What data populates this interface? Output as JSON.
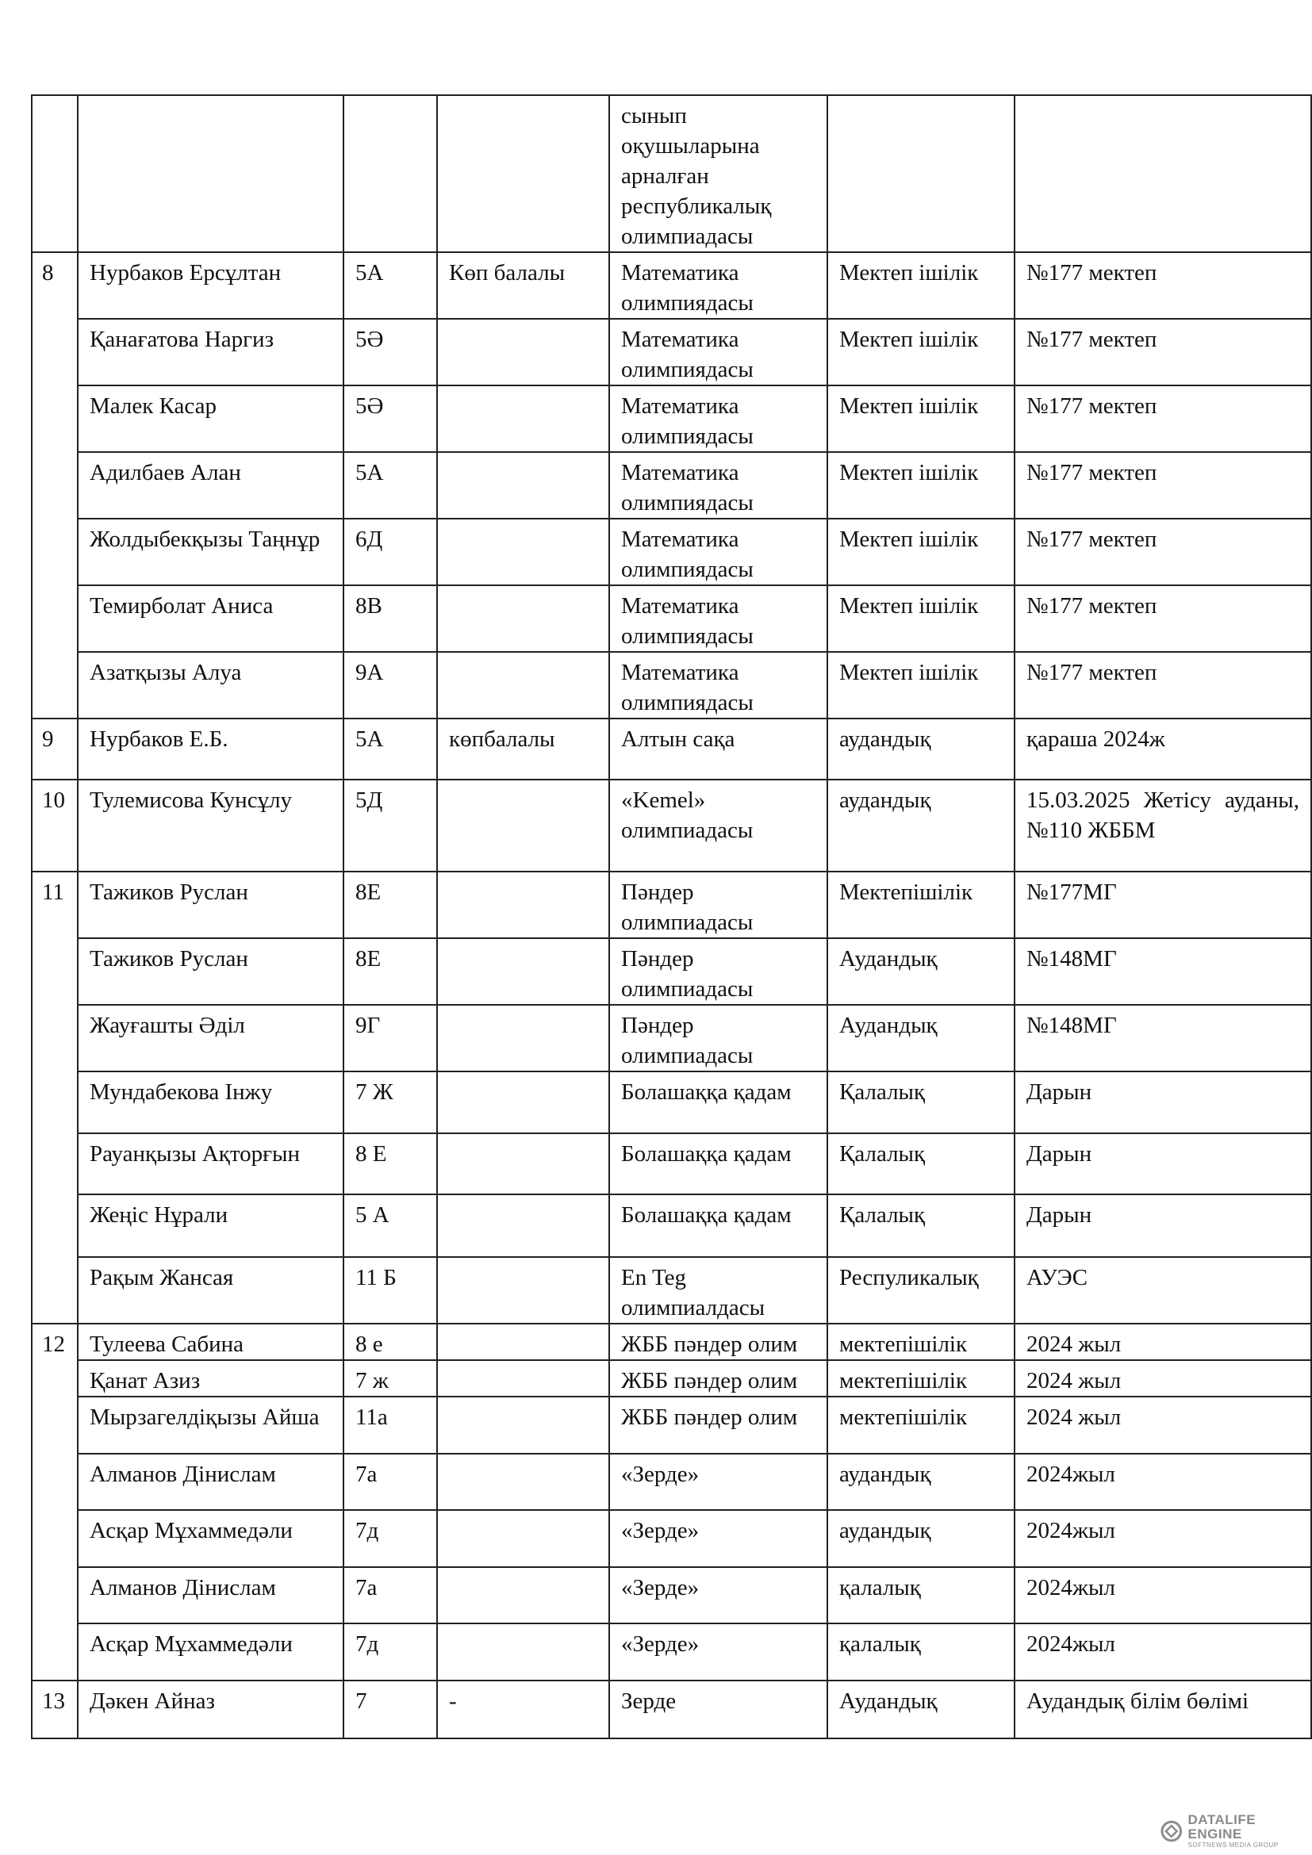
{
  "groups": [
    {
      "num": "",
      "rows": [
        {
          "name": "",
          "grade": "",
          "status": "",
          "olympiad": "сынып оқушыларына арналған республикалық олимпиадасы",
          "level": "",
          "place": ""
        }
      ]
    },
    {
      "num": "8",
      "rows": [
        {
          "name": "Нурбаков Ерсұлтан",
          "grade": "5А",
          "status": "Көп балалы",
          "olympiad": "Математика олимпиядасы",
          "level": "Мектеп ішілік",
          "place": "№177 мектеп"
        },
        {
          "name": "Қанағатова Наргиз",
          "grade": "5Ә",
          "status": "",
          "olympiad": "Математика олимпиядасы",
          "level": "Мектеп ішілік",
          "place": "№177 мектеп"
        },
        {
          "name": "Малек Касар",
          "grade": "5Ә",
          "status": "",
          "olympiad": "Математика олимпиядасы",
          "level": "Мектеп ішілік",
          "place": "№177 мектеп"
        },
        {
          "name": "Адилбаев Алан",
          "grade": "5А",
          "status": "",
          "olympiad": "Математика олимпиядасы",
          "level": "Мектеп ішілік",
          "place": "№177 мектеп"
        },
        {
          "name": "Жолдыбекқызы Таңнұр",
          "grade": "6Д",
          "status": "",
          "olympiad": "Математика олимпиядасы",
          "level": "Мектеп ішілік",
          "place": "№177 мектеп"
        },
        {
          "name": "Темирболат Аниса",
          "grade": "8В",
          "status": "",
          "olympiad": "Математика олимпиядасы",
          "level": "Мектеп ішілік",
          "place": "№177 мектеп"
        },
        {
          "name": "Азатқызы Алуа",
          "grade": "9А",
          "status": "",
          "olympiad": "Математика олимпиядасы",
          "level": "Мектеп ішілік",
          "place": "№177 мектеп"
        }
      ]
    },
    {
      "num": "9",
      "rows": [
        {
          "name": "Нурбаков Е.Б.",
          "grade": "5А",
          "status": "көпбалалы",
          "olympiad": "Алтын сақа",
          "level": "аудандық",
          "place": "қараша 2024ж"
        }
      ]
    },
    {
      "num": "10",
      "rows": [
        {
          "name": "Тулемисова Кунсұлу",
          "grade": "5Д",
          "status": "",
          "olympiad": "«Kemel» олимпиадасы",
          "level": "аудандық",
          "place": "15.03.2025 Жетісу ауданы, №110 ЖББМ"
        }
      ]
    },
    {
      "num": "11",
      "rows": [
        {
          "name": "Тажиков Руслан",
          "grade": "8Е",
          "status": "",
          "olympiad": "Пәндер олимпиадасы",
          "level": "Мектепішілік",
          "place": "№177МГ"
        },
        {
          "name": "Тажиков Руслан",
          "grade": "8Е",
          "status": "",
          "olympiad": "Пәндер олимпиадасы",
          "level": "Аудандық",
          "place": "№148МГ"
        },
        {
          "name": "Жауғашты Әділ",
          "grade": "9Г",
          "status": "",
          "olympiad": "Пәндер олимпиадасы",
          "level": "Аудандық",
          "place": "№148МГ"
        },
        {
          "name": "Мундабекова Інжу",
          "grade": "7 Ж",
          "status": "",
          "olympiad": "Болашаққа қадам",
          "level": "Қалалық",
          "place": "Дарын"
        },
        {
          "name": "Рауанқызы Ақторғын",
          "grade": "8 Е",
          "status": "",
          "olympiad": "Болашаққа қадам",
          "level": "Қалалық",
          "place": "Дарын"
        },
        {
          "name": "Жеңіс Нұрали",
          "grade": "5 А",
          "status": "",
          "olympiad": "Болашаққа қадам",
          "level": "Қалалық",
          "place": "Дарын"
        },
        {
          "name": "Рақым Жансая",
          "grade": "11 Б",
          "status": "",
          "olympiad": "En Teg олимпиалдасы",
          "level": "Респуликалық",
          "place": "АУЭС"
        }
      ]
    },
    {
      "num": "12",
      "rows": [
        {
          "name": "Тулеева Сабина",
          "grade": "8 е",
          "status": "",
          "olympiad": "ЖББ пәндер олим",
          "level": "мектепішілік",
          "place": "2024 жыл"
        },
        {
          "name": "Қанат Азиз",
          "grade": "7 ж",
          "status": "",
          "olympiad": "ЖББ пәндер олим",
          "level": "мектепішілік",
          "place": "2024 жыл"
        },
        {
          "name": "Мырзагелдіқызы Айша",
          "grade": "11а",
          "status": "",
          "olympiad": "ЖББ пәндер олим",
          "level": "мектепішілік",
          "place": "2024 жыл"
        },
        {
          "name": "Алманов Дінислам",
          "grade": "7а",
          "status": "",
          "olympiad": "«Зерде»",
          "level": "аудандық",
          "place": "2024жыл"
        },
        {
          "name": "Асқар Мұхаммедәли",
          "grade": "7д",
          "status": "",
          "olympiad": "«Зерде»",
          "level": "аудандық",
          "place": "2024жыл"
        },
        {
          "name": "Алманов Дінислам",
          "grade": "7а",
          "status": "",
          "olympiad": "«Зерде»",
          "level": "қалалық",
          "place": "2024жыл"
        },
        {
          "name": "Асқар Мұхаммедәли",
          "grade": "7д",
          "status": "",
          "olympiad": "«Зерде»",
          "level": "қалалық",
          "place": "2024жыл"
        }
      ]
    },
    {
      "num": "13",
      "rows": [
        {
          "name": "Дәкен Айназ",
          "grade": "7",
          "status": "-",
          "olympiad": "Зерде",
          "level": "Аудандық",
          "place": "Аудандық білім бөлімі"
        }
      ]
    }
  ],
  "watermark": {
    "title": "DATALIFE ENGINE",
    "subtitle": "SOFTNEWS MEDIA GROUP",
    "icon": "datalife-logo-icon"
  }
}
